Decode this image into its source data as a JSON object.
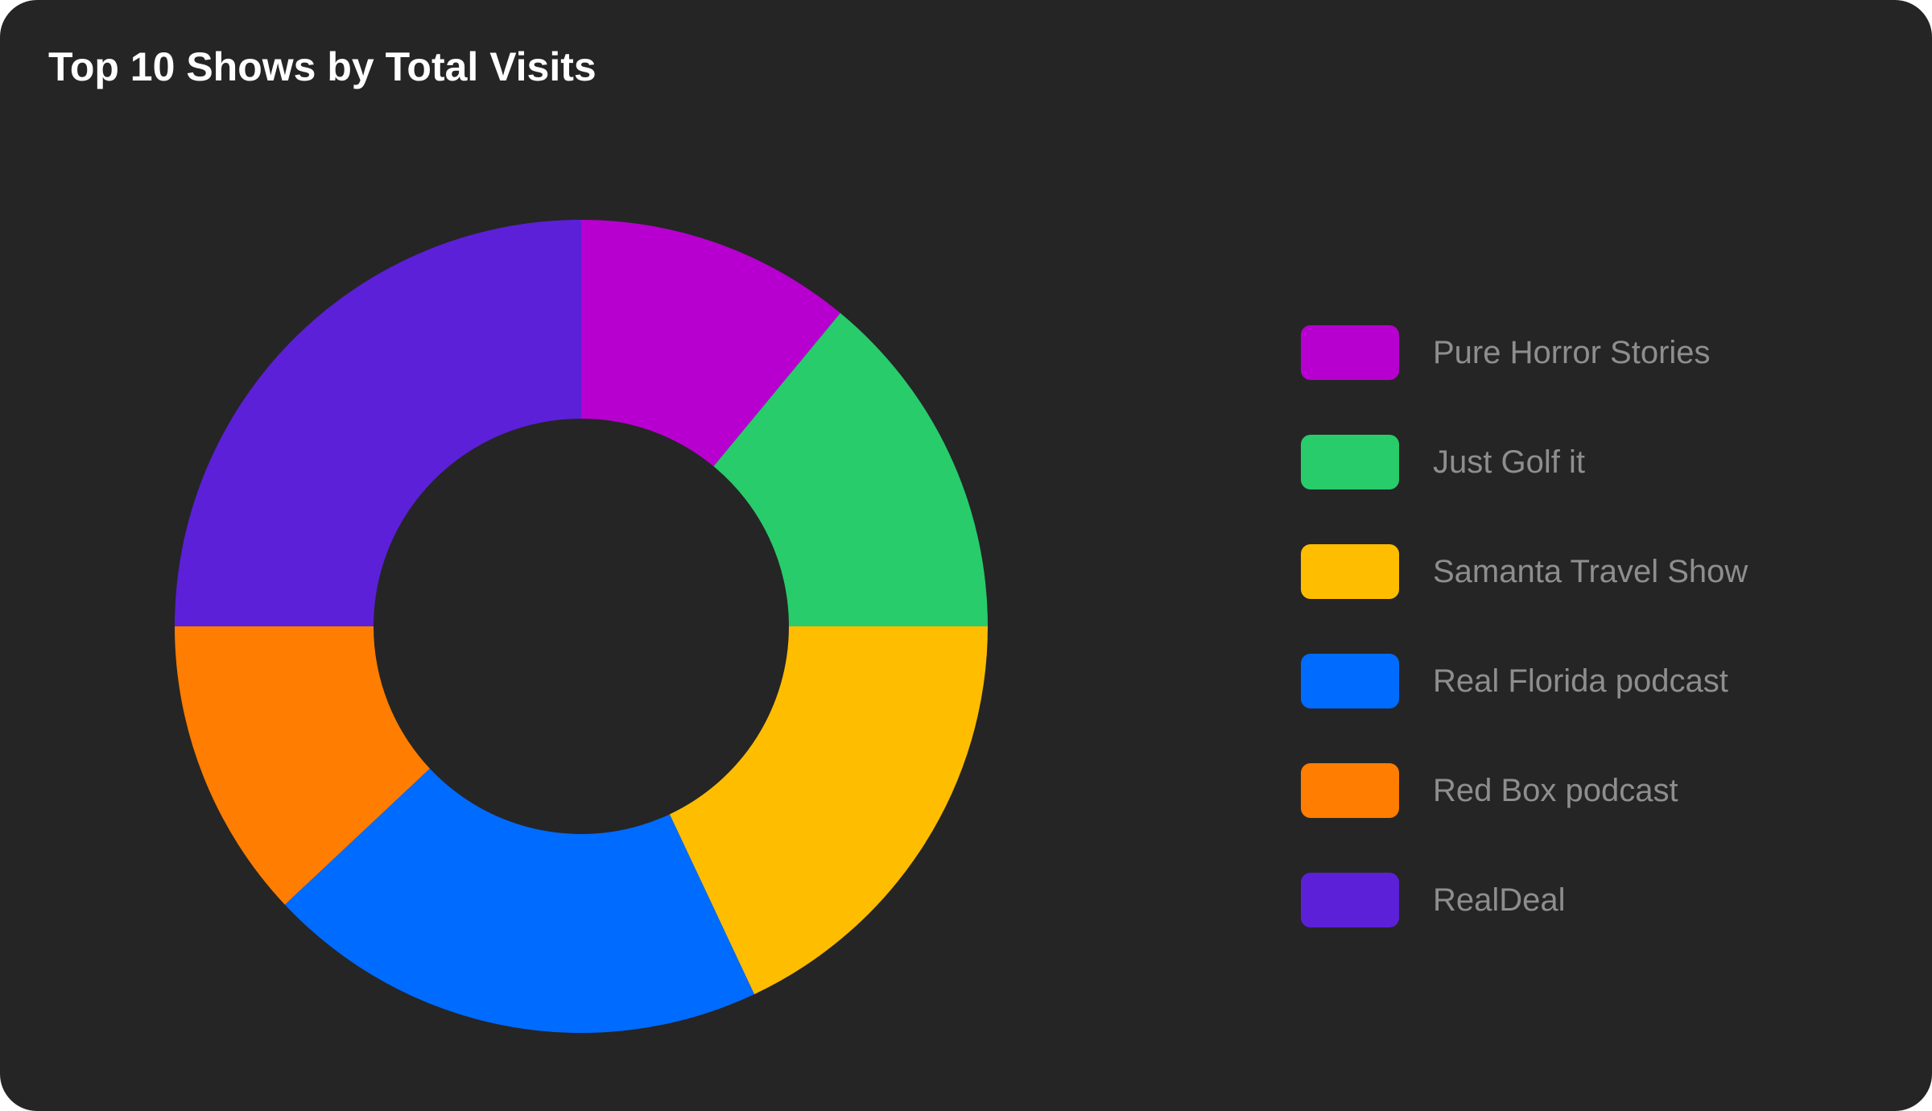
{
  "chart_data": {
    "type": "pie",
    "title": "Top 10 Shows by Total Visits",
    "donut": true,
    "start_angle": "12 o'clock, clockwise",
    "legend_position": "right",
    "series": [
      {
        "name": "Pure Horror Stories",
        "value": 11,
        "color": "#b700d0"
      },
      {
        "name": "Just Golf it",
        "value": 14,
        "color": "#28cc6b"
      },
      {
        "name": "Samanta Travel Show",
        "value": 18,
        "color": "#ffbd00"
      },
      {
        "name": "Real Florida podcast",
        "value": 20,
        "color": "#006bff"
      },
      {
        "name": "Red Box podcast",
        "value": 12,
        "color": "#ff7d00"
      },
      {
        "name": "RealDeal",
        "value": 25,
        "color": "#5c20d8"
      }
    ]
  }
}
